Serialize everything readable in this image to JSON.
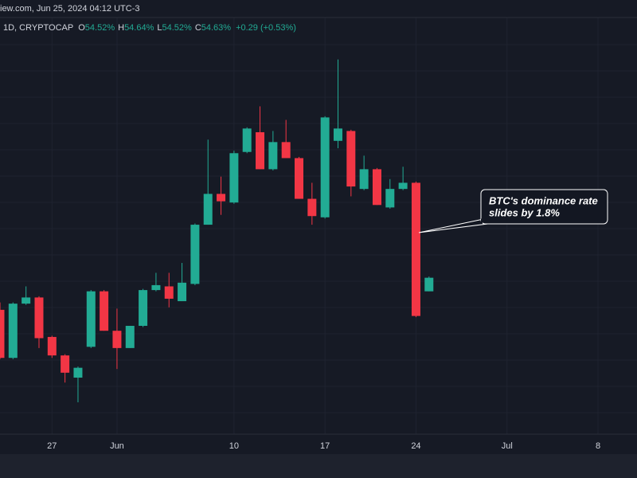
{
  "source_line": "iew.com, Jun 25, 2024 04:12 UTC-3",
  "symbol": "1D, CRYPTOCAP",
  "ohlc": [
    {
      "label": "O",
      "value": "54.52%"
    },
    {
      "label": "H",
      "value": "54.64%"
    },
    {
      "label": "L",
      "value": "54.52%"
    },
    {
      "label": "C",
      "value": "54.63%"
    }
  ],
  "change": "+0.29 (+0.53%)",
  "chart_data": {
    "type": "candlestick",
    "x": [
      "2024-05-23",
      "2024-05-24",
      "2024-05-25",
      "2024-05-26",
      "2024-05-27",
      "2024-05-28",
      "2024-05-29",
      "2024-05-30",
      "2024-05-31",
      "2024-06-01",
      "2024-06-02",
      "2024-06-03",
      "2024-06-04",
      "2024-06-05",
      "2024-06-06",
      "2024-06-07",
      "2024-06-08",
      "2024-06-09",
      "2024-06-10",
      "2024-06-11",
      "2024-06-12",
      "2024-06-13",
      "2024-06-14",
      "2024-06-15",
      "2024-06-16",
      "2024-06-17",
      "2024-06-18",
      "2024-06-19",
      "2024-06-20",
      "2024-06-21",
      "2024-06-22",
      "2024-06-23",
      "2024-06-24",
      "2024-06-25"
    ],
    "open": [
      54.37,
      53.98,
      54.42,
      54.47,
      54.15,
      54.0,
      53.82,
      54.07,
      54.52,
      54.2,
      54.06,
      54.24,
      54.53,
      54.56,
      54.44,
      54.58,
      55.06,
      55.31,
      55.24,
      55.65,
      55.81,
      55.51,
      55.73,
      55.6,
      55.27,
      55.12,
      55.74,
      55.82,
      55.35,
      55.51,
      55.2,
      55.35,
      55.4,
      54.52
    ],
    "high": [
      54.43,
      54.43,
      54.56,
      54.48,
      54.16,
      54.01,
      53.91,
      54.53,
      54.53,
      54.38,
      54.24,
      54.54,
      54.67,
      54.67,
      54.75,
      55.07,
      55.75,
      55.45,
      55.66,
      55.85,
      56.02,
      55.82,
      55.91,
      55.61,
      55.4,
      55.94,
      56.4,
      55.83,
      55.62,
      55.52,
      55.43,
      55.53,
      55.41,
      54.64
    ],
    "low": [
      53.97,
      53.97,
      54.41,
      54.06,
      53.98,
      53.78,
      53.62,
      54.06,
      54.2,
      53.89,
      54.06,
      54.23,
      54.52,
      54.39,
      54.44,
      54.57,
      55.06,
      55.14,
      55.23,
      55.64,
      55.51,
      55.5,
      55.6,
      55.27,
      55.06,
      55.11,
      55.68,
      55.29,
      55.34,
      55.22,
      55.19,
      55.34,
      54.31,
      54.52
    ],
    "close": [
      53.98,
      54.42,
      54.47,
      54.14,
      54.0,
      53.86,
      53.9,
      54.52,
      54.2,
      54.06,
      54.24,
      54.53,
      54.57,
      54.46,
      54.59,
      55.06,
      55.31,
      55.25,
      55.64,
      55.84,
      55.51,
      55.73,
      55.6,
      55.27,
      55.13,
      55.93,
      55.84,
      55.37,
      55.51,
      55.22,
      55.35,
      55.4,
      54.32,
      54.63
    ],
    "up_color": "#22ab94",
    "down_color": "#f23645",
    "xlim": [
      "2024-05-23",
      "2024-07-11"
    ],
    "ylim": [
      53.2,
      56.74
    ],
    "xticks": [
      {
        "value": "2024-05-27",
        "label": "27"
      },
      {
        "value": "2024-06-01",
        "label": "Jun"
      },
      {
        "value": "2024-06-10",
        "label": "10"
      },
      {
        "value": "2024-06-17",
        "label": "17"
      },
      {
        "value": "2024-06-24",
        "label": "24"
      },
      {
        "value": "2024-07-01",
        "label": "Jul"
      },
      {
        "value": "2024-07-08",
        "label": "8"
      }
    ],
    "grid": true,
    "annotation": [
      "BTC's dominance rate",
      "slides by 1.8%"
    ]
  }
}
